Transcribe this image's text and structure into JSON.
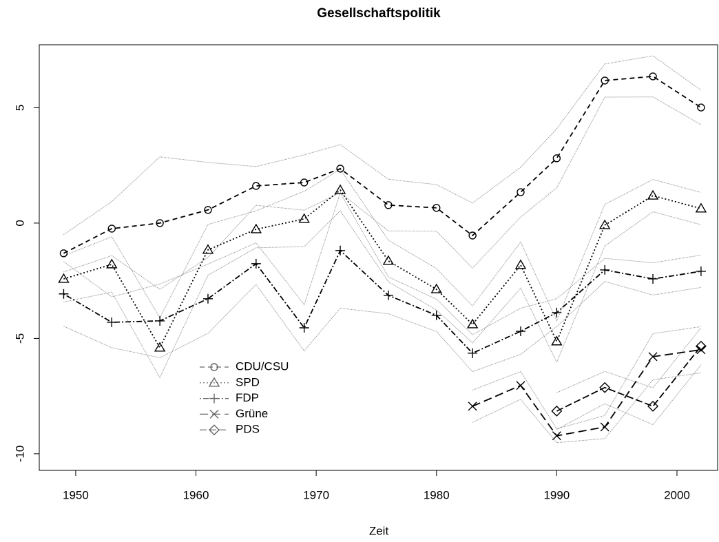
{
  "chart_data": {
    "type": "line",
    "title": "Gesellschaftspolitik",
    "x_label": "Zeit",
    "x": [
      1949,
      1953,
      1957,
      1961,
      1965,
      1969,
      1972,
      1976,
      1980,
      1983,
      1987,
      1990,
      1994,
      1998,
      2002
    ],
    "xlim": [
      1946.97,
      2003.38
    ],
    "xticks": [
      1950,
      1960,
      1970,
      1980,
      1990,
      2000
    ],
    "ylim": [
      -10.72,
      7.73
    ],
    "yticks": [
      -10,
      -5,
      0,
      5
    ],
    "band_color": "#8a8a8a",
    "series": [
      {
        "name": "CDU/CSU",
        "color": "#000000",
        "marker": "circle",
        "dash": "7 5",
        "values": [
          -1.31,
          -0.24,
          0,
          0.57,
          1.61,
          1.76,
          2.36,
          0.78,
          0.66,
          -0.54,
          1.34,
          2.81,
          6.18,
          6.36,
          5.01
        ],
        "upper": [
          -0.5,
          0.93,
          2.87,
          2.63,
          2.45,
          2.96,
          3.4,
          1.9,
          1.67,
          0.87,
          2.42,
          4.09,
          6.9,
          7.25,
          5.76
        ],
        "lower": [
          -2.12,
          -1.41,
          -2.87,
          -1.49,
          0.77,
          0.56,
          1.32,
          -0.34,
          -0.35,
          -1.95,
          0.26,
          1.53,
          5.46,
          5.47,
          4.26
        ]
      },
      {
        "name": "SPD",
        "color": "#000000",
        "marker": "triangle",
        "dash": "2 3",
        "values": [
          -2.42,
          -1.79,
          -5.4,
          -1.16,
          -0.27,
          0.18,
          1.43,
          -1.64,
          -2.87,
          -4.39,
          -1.82,
          -5.13,
          -0.09,
          1.19,
          0.63
        ],
        "upper": [
          -1.42,
          -0.59,
          -4.1,
          -0.06,
          0.53,
          1.38,
          2.33,
          -0.74,
          -1.97,
          -3.59,
          -0.82,
          -4.23,
          0.81,
          1.89,
          1.33
        ],
        "lower": [
          -3.42,
          -2.99,
          -6.7,
          -2.26,
          -1.07,
          -1.02,
          0.53,
          -2.54,
          -3.77,
          -5.19,
          -2.82,
          -6.03,
          -0.99,
          0.49,
          -0.07
        ]
      },
      {
        "name": "FDP",
        "color": "#000000",
        "marker": "plus",
        "dash": "2 3 8 3",
        "values": [
          -3.07,
          -4.3,
          -4.24,
          -3.28,
          -1.76,
          -4.54,
          -1.19,
          -3.13,
          -4.0,
          -5.64,
          -4.69,
          -3.88,
          -2.03,
          -2.42,
          -2.09
        ],
        "upper": [
          -1.67,
          -3.2,
          -2.64,
          -1.78,
          -0.86,
          -3.54,
          1.31,
          -2.33,
          -3.3,
          -4.84,
          -3.69,
          -3.28,
          -1.53,
          -1.72,
          -1.39
        ],
        "lower": [
          -4.47,
          -5.4,
          -5.84,
          -4.78,
          -2.66,
          -5.54,
          -3.69,
          -3.93,
          -4.7,
          -6.44,
          -5.69,
          -4.48,
          -2.53,
          -3.12,
          -2.79
        ]
      },
      {
        "name": "Grüne",
        "color": "#000000",
        "marker": "cross",
        "dash": "12 6",
        "values": [
          null,
          null,
          null,
          null,
          null,
          null,
          null,
          null,
          null,
          -7.94,
          -7.04,
          -9.22,
          -8.84,
          -5.79,
          -5.49
        ],
        "upper": [
          null,
          null,
          null,
          null,
          null,
          null,
          null,
          null,
          null,
          -7.24,
          -6.44,
          -8.92,
          -8.34,
          -4.79,
          -4.49
        ],
        "lower": [
          null,
          null,
          null,
          null,
          null,
          null,
          null,
          null,
          null,
          -8.64,
          -7.64,
          -9.52,
          -9.34,
          -6.79,
          -6.49
        ]
      },
      {
        "name": "PDS",
        "color": "#000000",
        "marker": "diamond",
        "dash": "10 4",
        "values": [
          null,
          null,
          null,
          null,
          null,
          null,
          null,
          null,
          null,
          null,
          null,
          -8.15,
          -7.13,
          -7.94,
          -5.34
        ],
        "upper": [
          null,
          null,
          null,
          null,
          null,
          null,
          null,
          null,
          null,
          null,
          null,
          -7.35,
          -6.43,
          -7.14,
          -4.54
        ],
        "lower": [
          null,
          null,
          null,
          null,
          null,
          null,
          null,
          null,
          null,
          null,
          null,
          -8.95,
          -7.83,
          -8.74,
          -6.14
        ]
      }
    ]
  }
}
